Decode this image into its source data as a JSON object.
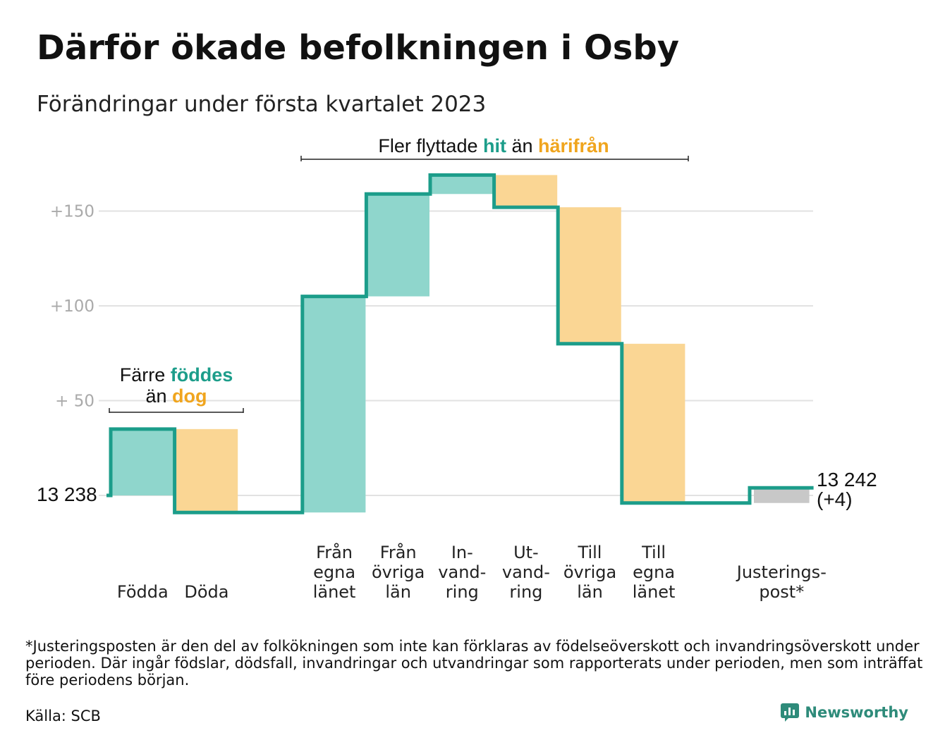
{
  "header": {
    "title": "Därför ökade befolkningen i Osby",
    "subtitle": "Förändringar under första kvartalet 2023"
  },
  "annotations": {
    "births": {
      "line1_pre": "Färre ",
      "line1_hl": "föddes",
      "line2_pre": "än ",
      "line2_hl": "dog"
    },
    "migration": {
      "pre": "Fler flyttade ",
      "hl1": "hit",
      "mid": " än ",
      "hl2": "härifrån"
    }
  },
  "start_label": "13 238",
  "end_label": {
    "line1": "13 242",
    "line2": "(+4)"
  },
  "footnote": "*Justeringsposten är den del av folkökningen som inte kan förklaras av födelseöverskott och invandringsöverskott under perioden. Där ingår födslar, dödsfall, invandringar och utvandringar som rapporterats under perioden, men som inträffat före periodens början.",
  "source": "Källa: SCB",
  "brand": "Newsworthy",
  "colors": {
    "increase": "#8fd6cc",
    "decrease": "#fad694",
    "adjustment": "#c8c8c8",
    "line": "#1c9d8a",
    "teal_text": "#1c9d8a",
    "orange_text": "#f0a51e",
    "grid": "#e2e2e2"
  },
  "chart_data": {
    "type": "waterfall",
    "baseline": 13238,
    "final": 13242,
    "y_ticks": [
      {
        "value": 150,
        "label": "+150"
      },
      {
        "value": 100,
        "label": "+100"
      },
      {
        "value": 50,
        "label": "+ 50"
      }
    ],
    "steps": [
      {
        "label_lines": [
          "Födda"
        ],
        "change": 35,
        "kind": "increase"
      },
      {
        "label_lines": [
          "Döda"
        ],
        "change": -44,
        "kind": "decrease"
      },
      {
        "label_lines": [],
        "change": 0,
        "kind": "gap"
      },
      {
        "label_lines": [
          "Från",
          "egna",
          "länet"
        ],
        "change": 114,
        "kind": "increase"
      },
      {
        "label_lines": [
          "Från",
          "övriga",
          "län"
        ],
        "change": 54,
        "kind": "increase"
      },
      {
        "label_lines": [
          "In-",
          "vand-",
          "ring"
        ],
        "change": 10,
        "kind": "increase"
      },
      {
        "label_lines": [
          "Ut-",
          "vand-",
          "ring"
        ],
        "change": -17,
        "kind": "decrease"
      },
      {
        "label_lines": [
          "Till",
          "övriga",
          "län"
        ],
        "change": -72,
        "kind": "decrease"
      },
      {
        "label_lines": [
          "Till",
          "egna",
          "länet"
        ],
        "change": -84,
        "kind": "decrease"
      },
      {
        "label_lines": [],
        "change": 0,
        "kind": "gap"
      },
      {
        "label_lines": [
          "Justerings-",
          "post*"
        ],
        "change": 8,
        "kind": "adjustment"
      }
    ]
  }
}
